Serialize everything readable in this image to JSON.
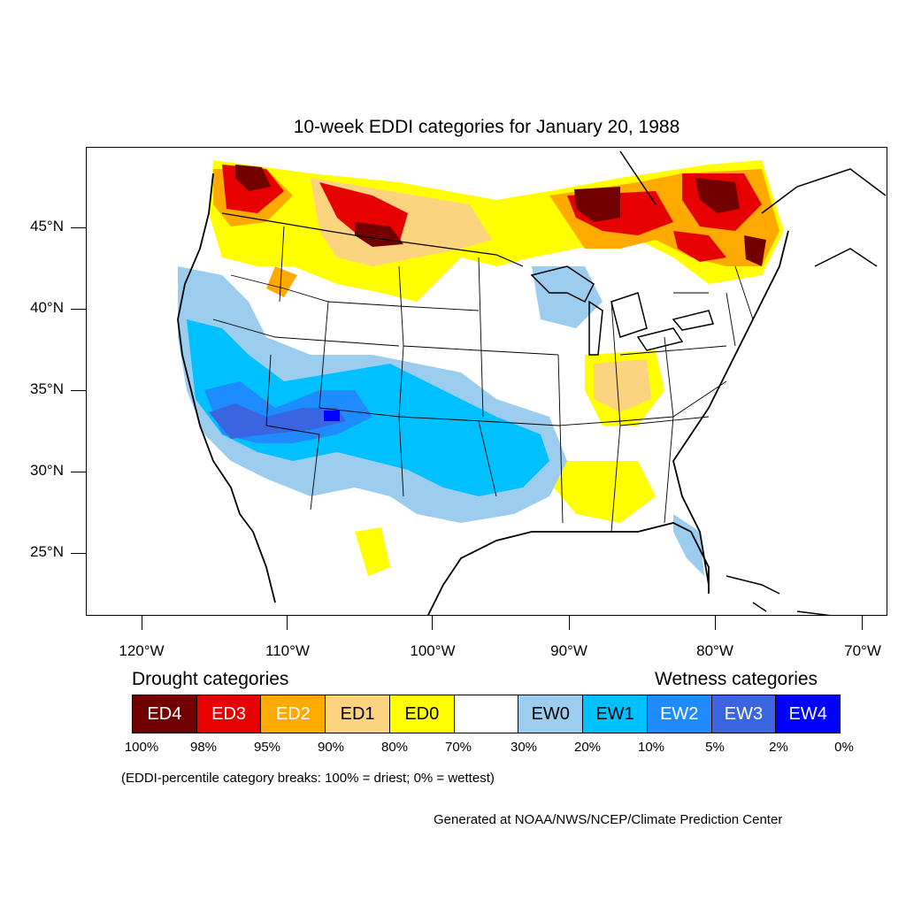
{
  "title": "10-week EDDI categories for January 20, 1988",
  "lat_labels": [
    "45°N",
    "40°N",
    "35°N",
    "30°N",
    "25°N"
  ],
  "lon_labels": [
    "120°W",
    "110°W",
    "100°W",
    "90°W",
    "80°W",
    "70°W"
  ],
  "legend": {
    "drought_heading": "Drought categories",
    "wetness_heading": "Wetness categories",
    "categories": [
      {
        "label": "ED4",
        "color": "#730000",
        "text_color": "#ffffff"
      },
      {
        "label": "ED3",
        "color": "#e60000",
        "text_color": "#ffffff"
      },
      {
        "label": "ED2",
        "color": "#ffaa00",
        "text_color": "#ffffff"
      },
      {
        "label": "ED1",
        "color": "#fcd37f",
        "text_color": "#000000"
      },
      {
        "label": "ED0",
        "color": "#ffff00",
        "text_color": "#000000"
      },
      {
        "label": "",
        "color": "#ffffff",
        "text_color": "#000000"
      },
      {
        "label": "EW0",
        "color": "#9ccdee",
        "text_color": "#000000"
      },
      {
        "label": "EW1",
        "color": "#00c0ff",
        "text_color": "#000000"
      },
      {
        "label": "EW2",
        "color": "#1e8cff",
        "text_color": "#ffffff"
      },
      {
        "label": "EW3",
        "color": "#3a64e0",
        "text_color": "#ffffff"
      },
      {
        "label": "EW4",
        "color": "#0000ff",
        "text_color": "#ffffff"
      }
    ],
    "percent_breaks": [
      "100%",
      "98%",
      "95%",
      "90%",
      "80%",
      "70%",
      "30%",
      "20%",
      "10%",
      "5%",
      "2%",
      "0%"
    ]
  },
  "note": "(EDDI-percentile category breaks: 100% = driest; 0% = wettest)",
  "credit": "Generated at NOAA/NWS/NCEP/Climate Prediction Center"
}
